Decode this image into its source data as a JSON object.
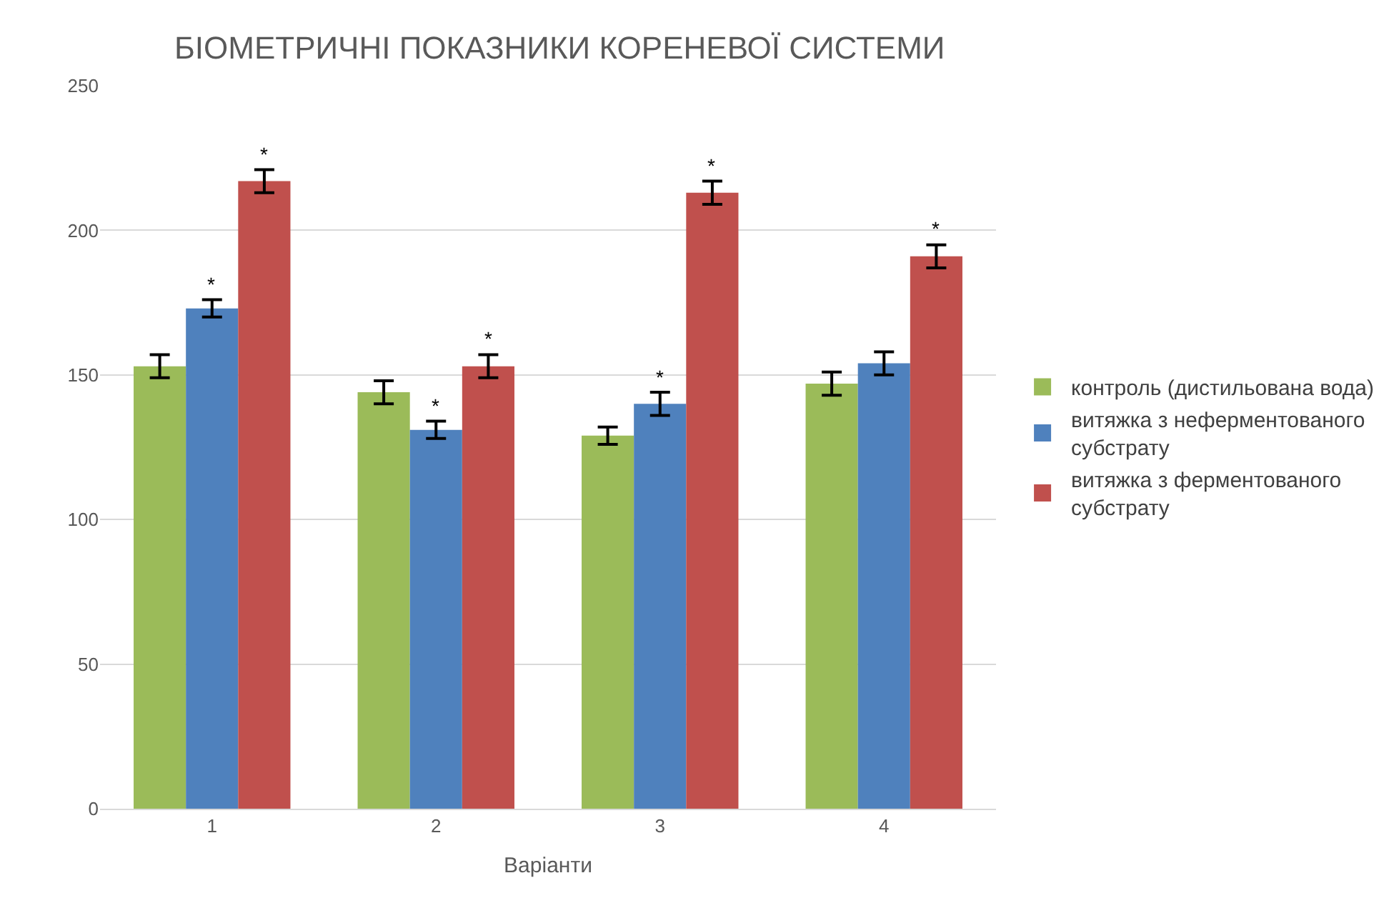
{
  "chart_data": {
    "type": "bar",
    "title": "БІОМЕТРИЧНІ ПОКАЗНИКИ КОРЕНЕВОЇ СИСТЕМИ",
    "xlabel": "Варіанти",
    "categories": [
      "1",
      "2",
      "3",
      "4"
    ],
    "series": [
      {
        "name": "контроль (дистильована вода)",
        "color": "#9bbb59",
        "values": [
          153,
          144,
          129,
          147
        ],
        "errors": [
          4,
          4,
          3,
          4
        ],
        "value_labels": [
          null,
          null,
          null,
          null
        ]
      },
      {
        "name": "витяжка з неферментованого субстрату",
        "color": "#4f81bd",
        "values": [
          173,
          131,
          140,
          154
        ],
        "errors": [
          3,
          3,
          4,
          4
        ],
        "value_labels": [
          "*",
          "*",
          "*",
          null
        ]
      },
      {
        "name": "витяжка з ферментованого субстрату",
        "color": "#c0504d",
        "values": [
          217,
          153,
          213,
          191
        ],
        "errors": [
          4,
          4,
          4,
          4
        ],
        "value_labels": [
          "*",
          "*",
          "*",
          "*"
        ]
      }
    ],
    "ylim": [
      0,
      250
    ],
    "yticks": [
      0,
      50,
      100,
      150,
      200,
      250
    ],
    "grid": "y",
    "legend": "right"
  }
}
